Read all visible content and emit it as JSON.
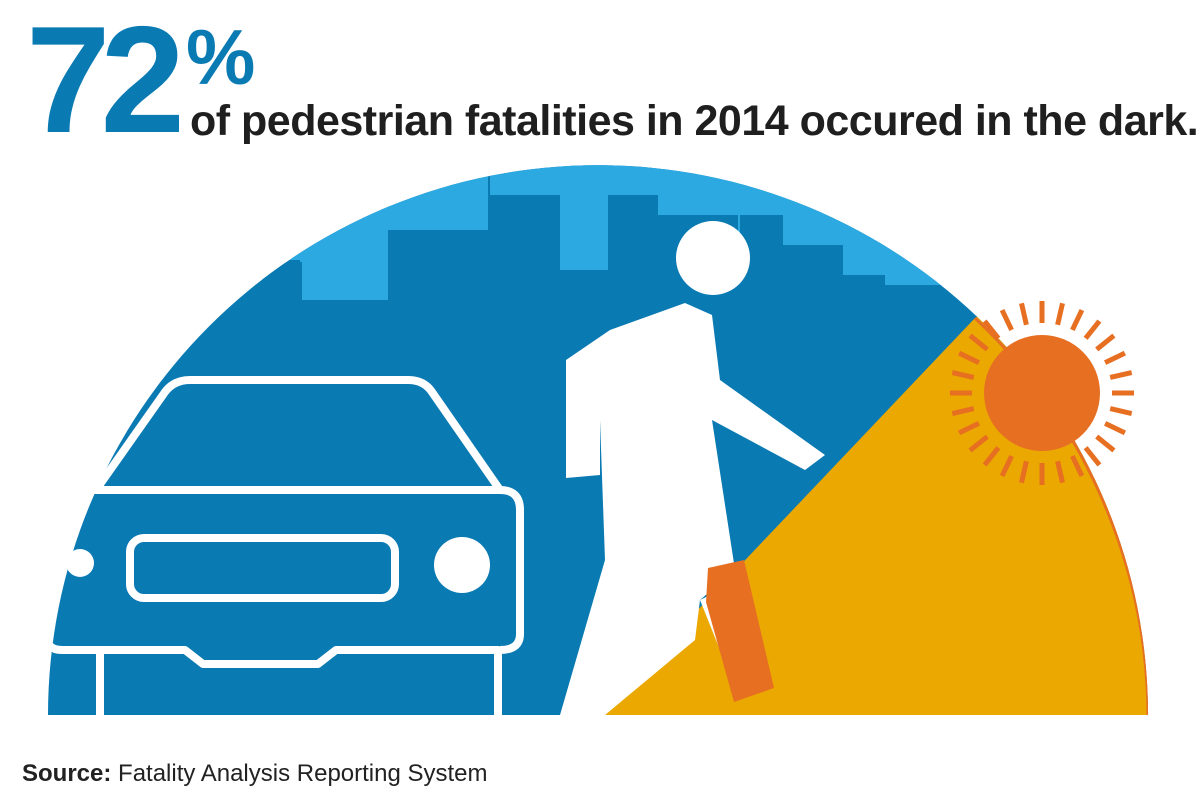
{
  "headline": {
    "value": "72",
    "unit": "%",
    "text": "of pedestrian fatalities in 2014 occured in the dark."
  },
  "source": {
    "label": "Source:",
    "text": "Fatality Analysis Reporting System"
  },
  "illustration": {
    "elements": [
      "car-icon",
      "pedestrian-icon",
      "sun-icon",
      "city-skyline"
    ],
    "dark_share_percent": 72
  },
  "colors": {
    "accent": "#0a7ab3",
    "dark_sky": "#0a7ab3",
    "skyline": "#2ca9e1",
    "daylight": "#eaa800",
    "sun": "#e76f22",
    "figure": "#ffffff"
  }
}
